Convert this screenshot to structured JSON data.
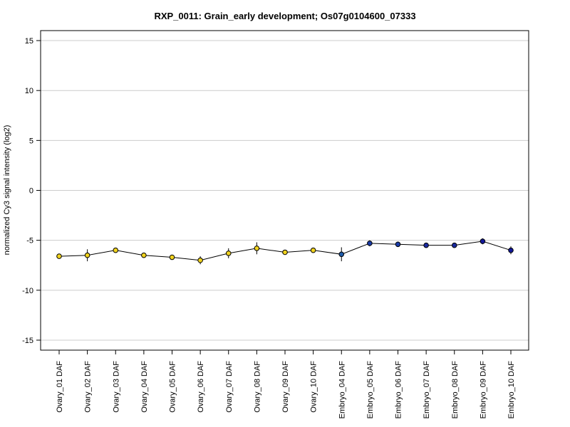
{
  "chart_data": {
    "type": "line",
    "title": "RXP_0011: Grain_early development; Os07g0104600_07333",
    "xlabel": "",
    "ylabel": "normalized Cy3 signal intensity (log2)",
    "ylim": [
      -16,
      16
    ],
    "yticks": [
      "-15",
      "-10",
      "-5",
      "0",
      "5",
      "10",
      "15"
    ],
    "grid": true,
    "categories": [
      "Ovary_01 DAF",
      "Ovary_02 DAF",
      "Ovary_03 DAF",
      "Ovary_04 DAF",
      "Ovary_05 DAF",
      "Ovary_06 DAF",
      "Ovary_07 DAF",
      "Ovary_08 DAF",
      "Ovary_09 DAF",
      "Ovary_10 DAF",
      "Embryo_04 DAF",
      "Embryo_05 DAF",
      "Embryo_06 DAF",
      "Embryo_07 DAF",
      "Embryo_08 DAF",
      "Embryo_09 DAF",
      "Embryo_10 DAF"
    ],
    "values": [
      -6.6,
      -6.5,
      -6.0,
      -6.5,
      -6.7,
      -7.0,
      -6.3,
      -5.8,
      -6.2,
      -6.0,
      -6.4,
      -5.3,
      -5.4,
      -5.5,
      -5.5,
      -5.1,
      -6.0
    ],
    "errors": [
      0.2,
      0.6,
      0.2,
      0.2,
      0.2,
      0.4,
      0.5,
      0.6,
      0.2,
      0.2,
      0.7,
      0.3,
      0.2,
      0.2,
      0.2,
      0.3,
      0.4
    ],
    "point_colors": [
      "#f0d21e",
      "#f0d21e",
      "#f0d21e",
      "#f0d21e",
      "#f0d21e",
      "#f0d21e",
      "#f0d21e",
      "#f0d21e",
      "#f0d21e",
      "#f0d21e",
      "#1e5aa8",
      "#1a3ca8",
      "#1a3ca8",
      "#1a2aa0",
      "#1a2aa0",
      "#12189a",
      "#12189a"
    ]
  }
}
